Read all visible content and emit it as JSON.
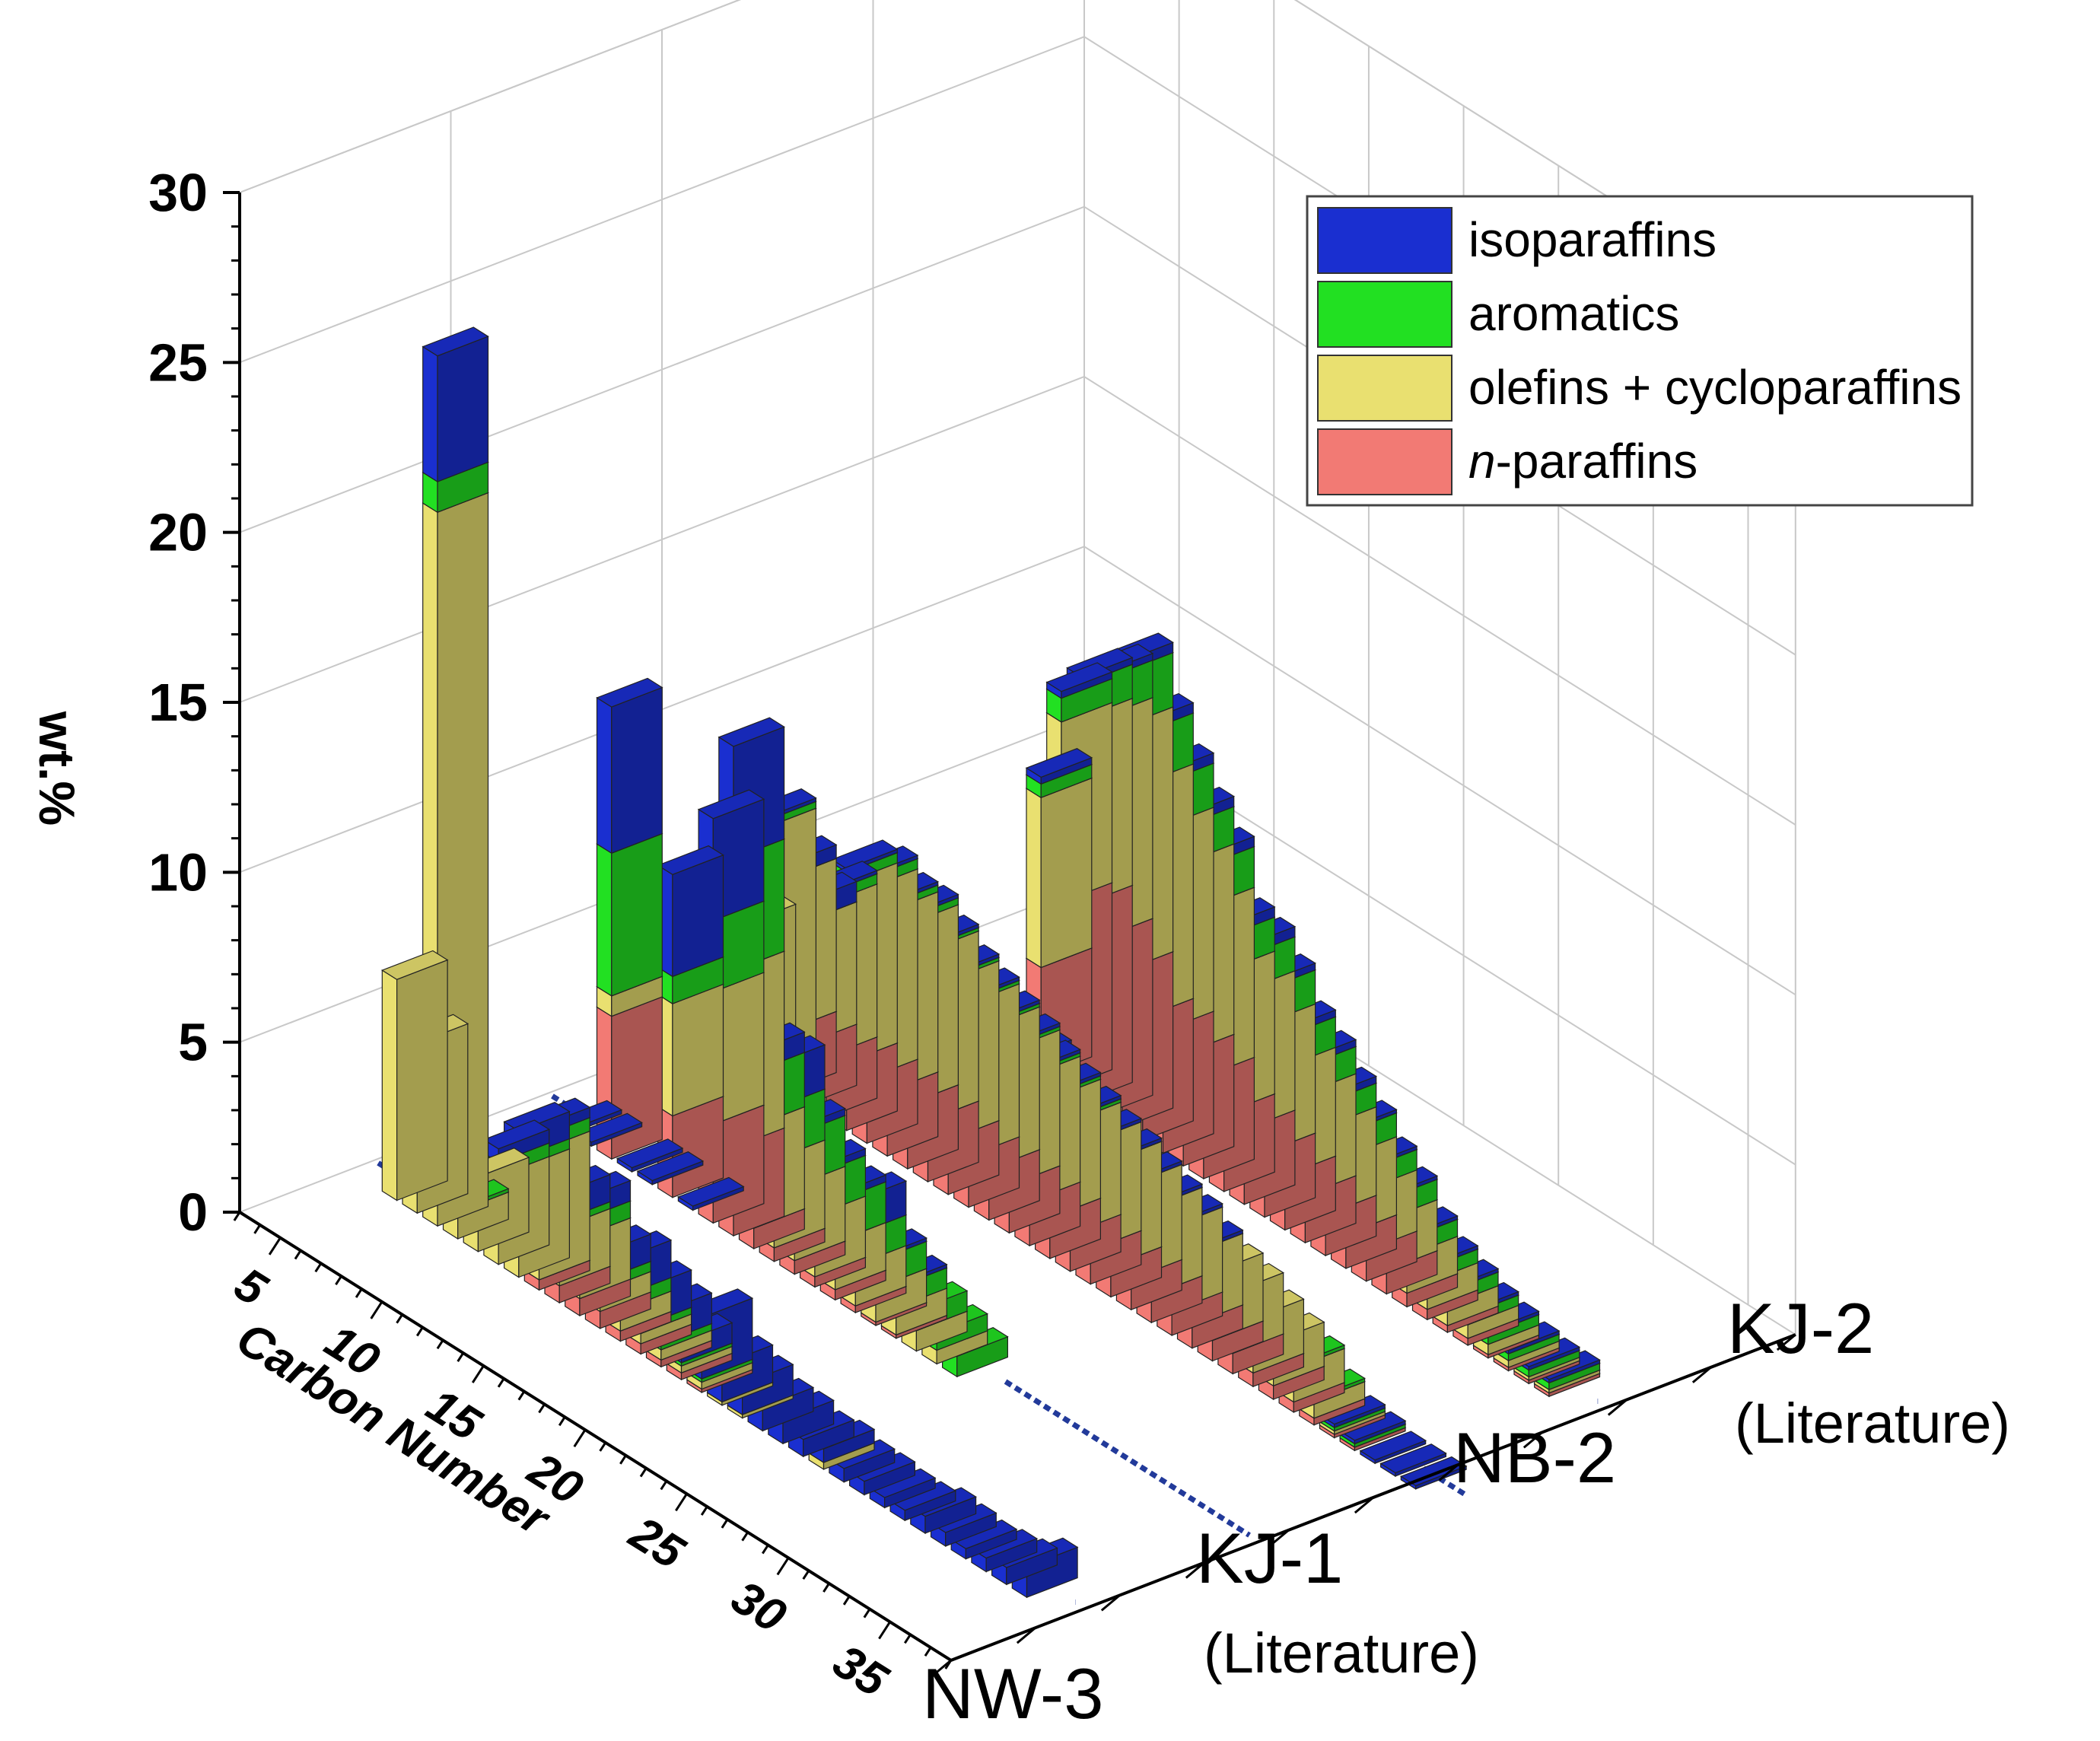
{
  "chart_data": {
    "type": "bar3d-stacked",
    "y_axis": {
      "title": "wt.%",
      "ticks": [
        "0",
        "5",
        "10",
        "15",
        "20",
        "25",
        "30"
      ],
      "range": [
        0,
        30
      ]
    },
    "x_axis": {
      "title": "Carbon Number",
      "ticks": [
        "5",
        "10",
        "15",
        "20",
        "25",
        "30",
        "35"
      ],
      "range": [
        3,
        38
      ]
    },
    "depth_axis": {
      "samples": [
        {
          "name": "NW-3",
          "note": ""
        },
        {
          "name": "KJ-1",
          "note": "(Literature)"
        },
        {
          "name": "NB-2",
          "note": ""
        },
        {
          "name": "KJ-2",
          "note": "(Literature)"
        }
      ]
    },
    "legend": [
      {
        "label": "isoparaffins",
        "color": "#1a2fd0",
        "italic_prefix": ""
      },
      {
        "label": "aromatics",
        "color": "#22e022",
        "italic_prefix": ""
      },
      {
        "label": "olefins + cycloparaffins",
        "color": "#e9e070",
        "italic_prefix": ""
      },
      {
        "label": "-paraffins",
        "color": "#f27a74",
        "italic_prefix": "n"
      }
    ],
    "series": [
      {
        "sample": "NW-3",
        "carbon_numbers": [
          5,
          6,
          7,
          8,
          9,
          10,
          11,
          12,
          13,
          14,
          15,
          16,
          17,
          18,
          19,
          20,
          21,
          22,
          23,
          24,
          25,
          26,
          27,
          28,
          29,
          30,
          31,
          32,
          33,
          34,
          35,
          36
        ],
        "n_paraffins": [
          0,
          0,
          0,
          0,
          0,
          0,
          0,
          0.3,
          0.5,
          0.5,
          0.5,
          0.3,
          0.3,
          0.2,
          0.2,
          0.1,
          0,
          0,
          0,
          0,
          0,
          0,
          0,
          0,
          0,
          0,
          0,
          0,
          0,
          0,
          0,
          0
        ],
        "olefins_cyclo": [
          6.5,
          5,
          21,
          0.8,
          2.2,
          2.6,
          3.2,
          3.8,
          1.7,
          1.8,
          0.6,
          0.6,
          0.3,
          0.3,
          0.2,
          0.2,
          0.1,
          0.1,
          0,
          0,
          0,
          0.2,
          0,
          0,
          0,
          0,
          0,
          0,
          0,
          0,
          0,
          0
        ],
        "aromatics": [
          0,
          0,
          0.9,
          0.1,
          0,
          0.4,
          0.3,
          0.4,
          0.2,
          0.5,
          0.3,
          0.4,
          0.2,
          0.2,
          0.1,
          0.1,
          0,
          0,
          0,
          0,
          0,
          0,
          0,
          0,
          0,
          0,
          0,
          0,
          0,
          0,
          0,
          0
        ],
        "isoparaffins": [
          0,
          0,
          3.7,
          0,
          0,
          0.4,
          0.8,
          0.3,
          0.8,
          0.6,
          0.8,
          1.1,
          1.1,
          0.9,
          0.6,
          1.8,
          1.1,
          0.9,
          0.7,
          0.7,
          0.5,
          0.4,
          0.4,
          0.4,
          0.3,
          0.3,
          0.5,
          0.4,
          0.3,
          0.4,
          0.5,
          0.9
        ]
      },
      {
        "sample": "KJ-1",
        "carbon_numbers": [
          5,
          6,
          7,
          8,
          9,
          10,
          11,
          12,
          13,
          14,
          15,
          16,
          17,
          18,
          19,
          20,
          21,
          22,
          23,
          24
        ],
        "n_paraffins": [
          0,
          0,
          4.2,
          0,
          0,
          2.4,
          0,
          2.9,
          2.6,
          0.6,
          0.4,
          0.4,
          0.3,
          0.3,
          0.2,
          0.1,
          0.1,
          0,
          0,
          0
        ],
        "olefins_cyclo": [
          0,
          0,
          0.6,
          0,
          0,
          3.3,
          0,
          3.9,
          5.2,
          3.0,
          2.6,
          2.2,
          1.8,
          1.4,
          1.2,
          1.0,
          0.8,
          0.6,
          0.4,
          0
        ],
        "aromatics": [
          0,
          0,
          4.2,
          0,
          0,
          0.8,
          0,
          2.1,
          3.3,
          1.6,
          1.5,
          1.5,
          1.2,
          1.2,
          0.9,
          0.8,
          0.6,
          0.6,
          0.5,
          0.6
        ],
        "isoparaffins": [
          0,
          0,
          4.3,
          0,
          0,
          3.0,
          0,
          3.0,
          3.3,
          0.6,
          1.3,
          0.2,
          0.2,
          0.2,
          1.0,
          0.1,
          0.1,
          0,
          0,
          0
        ]
      },
      {
        "sample": "NB-2",
        "carbon_numbers": [
          5,
          6,
          7,
          8,
          9,
          10,
          11,
          12,
          13,
          14,
          15,
          16,
          17,
          18,
          19,
          20,
          21,
          22,
          23,
          24,
          25,
          26,
          27,
          28,
          29,
          30,
          31,
          32,
          33,
          34,
          35,
          36,
          37,
          38
        ],
        "n_paraffins": [
          0,
          0,
          1.8,
          1.8,
          1.8,
          2.0,
          1.9,
          1.9,
          1.9,
          1.8,
          1.6,
          1.5,
          1.5,
          1.4,
          1.3,
          1.2,
          1.1,
          1.0,
          0.9,
          0.9,
          0.8,
          0.7,
          0.7,
          0.6,
          0.6,
          0.4,
          0.4,
          0.3,
          0.2,
          0.1,
          0.1,
          0,
          0,
          0
        ],
        "olefins_cyclo": [
          4.2,
          7.4,
          4.5,
          3.6,
          4.5,
          5.3,
          5.6,
          5.3,
          5.3,
          5.0,
          4.7,
          4.5,
          4.2,
          4.0,
          3.7,
          3.5,
          3.3,
          3.2,
          3.1,
          2.8,
          2.6,
          2.5,
          2.1,
          2.0,
          1.8,
          1.6,
          1.3,
          1.0,
          0.5,
          0.1,
          0,
          0,
          0,
          0
        ],
        "aromatics": [
          0,
          0.2,
          0,
          0,
          0.3,
          0.3,
          0.3,
          0.2,
          0.2,
          0.1,
          0.1,
          0.1,
          0.1,
          0.1,
          0.1,
          0.1,
          0.1,
          0,
          0,
          0,
          0,
          0,
          0,
          0,
          0,
          0,
          0,
          0.1,
          0.1,
          0.1,
          0.1,
          0,
          0,
          0
        ],
        "isoparaffins": [
          0,
          0.1,
          0.4,
          0.6,
          0.1,
          0.1,
          0.1,
          0.1,
          0.1,
          0.1,
          0.1,
          0.1,
          0.1,
          0.1,
          0.1,
          0.1,
          0.1,
          0.1,
          0.1,
          0.1,
          0.1,
          0.1,
          0.1,
          0,
          0,
          0,
          0,
          0,
          0,
          0.1,
          0.1,
          0.1,
          0.1,
          0.1
        ]
      },
      {
        "sample": "KJ-2",
        "carbon_numbers": [
          5,
          6,
          7,
          8,
          9,
          10,
          11,
          12,
          13,
          14,
          15,
          16,
          17,
          18,
          19,
          20,
          21,
          22,
          23,
          24,
          25,
          26,
          27,
          28,
          29,
          30,
          31,
          32,
          33,
          34,
          35,
          36
        ],
        "n_paraffins": [
          0,
          0,
          0,
          0,
          0,
          0,
          3.2,
          5.5,
          5.8,
          5.2,
          4.6,
          3.6,
          3.6,
          3.3,
          3.0,
          2.3,
          2.2,
          1.9,
          1.6,
          1.4,
          1.2,
          1.0,
          0.9,
          0.7,
          0.4,
          0.3,
          0.2,
          0.2,
          0.1,
          0.1,
          0.1,
          0.1
        ],
        "olefins_cyclo": [
          0,
          0,
          0,
          0,
          0,
          0,
          5.0,
          5.3,
          5.5,
          6.5,
          7.2,
          6.9,
          6.0,
          5.6,
          5.0,
          4.2,
          4.1,
          3.8,
          3.2,
          3.0,
          2.6,
          2.3,
          1.8,
          1.5,
          1.1,
          0.8,
          0.6,
          0.4,
          0.3,
          0.2,
          0.1,
          0.1
        ],
        "aromatics": [
          0,
          0,
          0,
          0,
          0,
          0,
          0.4,
          0.7,
          1.0,
          1.1,
          1.6,
          1.5,
          1.3,
          1.1,
          1.2,
          1.0,
          1.0,
          1.0,
          0.9,
          0.8,
          0.7,
          0.7,
          0.6,
          0.6,
          0.5,
          0.4,
          0.4,
          0.3,
          0.3,
          0.2,
          0.2,
          0.2
        ],
        "isoparaffins": [
          0,
          0,
          0,
          0,
          0,
          0,
          0.2,
          0.2,
          0.2,
          0.2,
          0.3,
          0.3,
          0.3,
          0.3,
          0.3,
          0.3,
          0.3,
          0.2,
          0.2,
          0.2,
          0.2,
          0.1,
          0.1,
          0.1,
          0.1,
          0.1,
          0.1,
          0.1,
          0.1,
          0.1,
          0.1,
          0.1
        ]
      }
    ]
  }
}
